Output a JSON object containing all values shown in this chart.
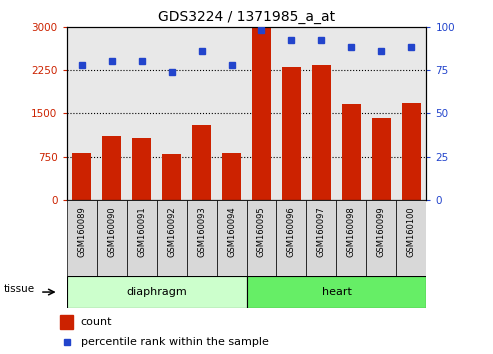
{
  "title": "GDS3224 / 1371985_a_at",
  "samples": [
    "GSM160089",
    "GSM160090",
    "GSM160091",
    "GSM160092",
    "GSM160093",
    "GSM160094",
    "GSM160095",
    "GSM160096",
    "GSM160097",
    "GSM160098",
    "GSM160099",
    "GSM160100"
  ],
  "counts": [
    820,
    1100,
    1080,
    790,
    1300,
    820,
    2980,
    2300,
    2330,
    1660,
    1420,
    1680
  ],
  "pct_values": [
    78,
    80,
    80,
    74,
    86,
    78,
    98,
    92,
    92,
    88,
    86,
    88
  ],
  "diaphragm_color": "#ccffcc",
  "heart_color": "#66ee66",
  "bar_color": "#cc2200",
  "dot_color": "#2244cc",
  "plot_bg": "#e8e8e8",
  "label_bg": "#d8d8d8",
  "ylim_left": [
    0,
    3000
  ],
  "ylim_right": [
    0,
    100
  ],
  "yticks_left": [
    0,
    750,
    1500,
    2250,
    3000
  ],
  "yticks_right": [
    0,
    25,
    50,
    75,
    100
  ],
  "legend_count": "count",
  "legend_pct": "percentile rank within the sample",
  "tissue_label": "tissue"
}
